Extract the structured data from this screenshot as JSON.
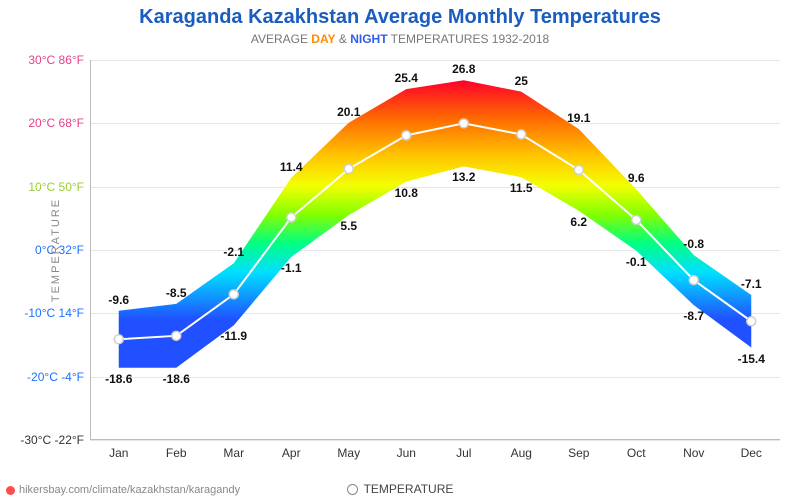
{
  "title": "Karaganda Kazakhstan Average Monthly Temperatures",
  "subtitle_prefix": "AVERAGE ",
  "subtitle_day": "DAY",
  "subtitle_and": " & ",
  "subtitle_night": "NIGHT",
  "subtitle_suffix": " TEMPERATURES 1932-2018",
  "y_axis_label": "TEMPERATURE",
  "legend_label": "TEMPERATURE",
  "source_text": "hikersbay.com/climate/kazakhstan/karagandy",
  "chart": {
    "type": "area-band-line",
    "months": [
      "Jan",
      "Feb",
      "Mar",
      "Apr",
      "May",
      "Jun",
      "Jul",
      "Aug",
      "Sep",
      "Oct",
      "Nov",
      "Dec"
    ],
    "day": [
      -9.6,
      -8.5,
      -2.1,
      11.4,
      20.1,
      25.4,
      26.8,
      25.0,
      19.1,
      9.6,
      -0.8,
      -7.1
    ],
    "night": [
      -18.6,
      -18.6,
      -11.9,
      -1.1,
      5.5,
      10.8,
      13.2,
      11.5,
      6.2,
      -0.1,
      -8.7,
      -15.4
    ],
    "avg": [
      -14.1,
      -13.55,
      -7.0,
      5.15,
      12.8,
      18.1,
      20.0,
      18.25,
      12.65,
      4.75,
      -4.75,
      -11.25
    ],
    "y_min_c": -30,
    "y_max_c": 30,
    "y_ticks": [
      {
        "c": "30°C",
        "f": "86°F",
        "v": 30,
        "color": "#e83e8c"
      },
      {
        "c": "20°C",
        "f": "68°F",
        "v": 20,
        "color": "#e83e8c"
      },
      {
        "c": "10°C",
        "f": "50°F",
        "v": 10,
        "color": "#9acd32"
      },
      {
        "c": "0°C",
        "f": "32°F",
        "v": 0,
        "color": "#1e70ff"
      },
      {
        "c": "-10°C",
        "f": "14°F",
        "v": -10,
        "color": "#1e70ff"
      },
      {
        "c": "-20°C",
        "f": "-4°F",
        "v": -20,
        "color": "#1e70ff"
      },
      {
        "c": "-30°C",
        "f": "-22°F",
        "v": -30,
        "color": "#333"
      }
    ],
    "gradient_stops": [
      {
        "t": 30,
        "color": "#ff002b"
      },
      {
        "t": 22,
        "color": "#ff6a00"
      },
      {
        "t": 14,
        "color": "#ffc800"
      },
      {
        "t": 8,
        "color": "#f3ff00"
      },
      {
        "t": 2,
        "color": "#83ff00"
      },
      {
        "t": -4,
        "color": "#00ff83"
      },
      {
        "t": -10,
        "color": "#00e0ff"
      },
      {
        "t": -20,
        "color": "#2050ff"
      }
    ],
    "avg_line_color": "#ffffff",
    "avg_marker_stroke": "#cfcfcf",
    "background_color": "#ffffff",
    "grid_color": "#e6e6e6",
    "title_color": "#1a5dbf",
    "font_family": "Arial",
    "title_fontsize": 20,
    "label_fontsize": 12
  }
}
